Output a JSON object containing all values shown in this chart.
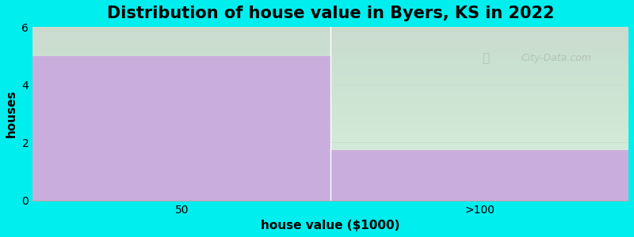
{
  "title": "Distribution of house value in Byers, KS in 2022",
  "categories": [
    "50",
    ">100"
  ],
  "values": [
    5,
    1.75
  ],
  "bar_color": "#c9aedd",
  "background_color": "#00eeee",
  "plot_bg_color_top": "#e8f5e8",
  "plot_bg_color_bottom": "#f8fff8",
  "xlabel": "house value ($1000)",
  "ylabel": "houses",
  "ylim": [
    0,
    6
  ],
  "yticks": [
    0,
    2,
    4,
    6
  ],
  "title_fontsize": 15,
  "axis_label_fontsize": 11,
  "tick_fontsize": 10,
  "watermark": "City-Data.com",
  "bar_edges": [
    0,
    1,
    2
  ]
}
